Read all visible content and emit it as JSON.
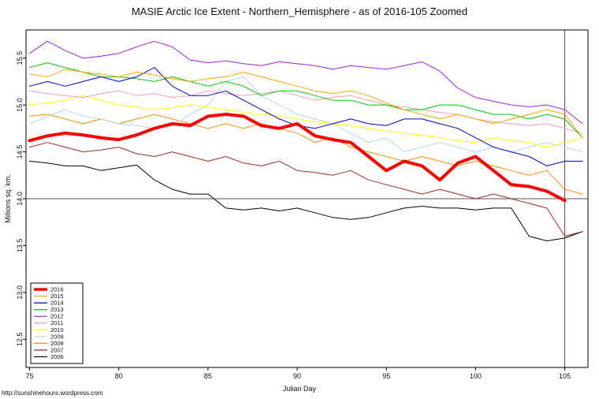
{
  "page": {
    "footer_url": "http://sunshinehours.wordpress.com"
  },
  "chart_data": {
    "type": "line",
    "title": "MASIE Arctic Ice Extent - Northern_Hemisphere - as of 2016-105 Zoomed",
    "xlabel": "Julian Day",
    "ylabel": "Millions sq. km.",
    "x_start": 75,
    "xlim": [
      74.8,
      106.3
    ],
    "ylim": [
      12.2,
      15.8
    ],
    "xticks": [
      75,
      80,
      85,
      90,
      95,
      100,
      105
    ],
    "yticks": [
      12.5,
      13.0,
      13.5,
      14.0,
      14.5,
      15.0,
      15.5
    ],
    "grid": false,
    "legend_position": "bottom-left",
    "reference_lines": {
      "horizontal_y": 14.0,
      "horizontal_color": "#555555",
      "vertical_x": 105,
      "vertical_color": "#993333"
    },
    "series": [
      {
        "name": "2016",
        "color": "#FF0000",
        "line_width": 4,
        "values": [
          14.62,
          14.67,
          14.7,
          14.68,
          14.65,
          14.63,
          14.68,
          14.75,
          14.8,
          14.78,
          14.88,
          14.9,
          14.88,
          14.78,
          14.75,
          14.8,
          14.67,
          14.63,
          14.6,
          14.45,
          14.3,
          14.4,
          14.35,
          14.2,
          14.38,
          14.45,
          14.3,
          14.15,
          14.13,
          14.08,
          13.98
        ]
      },
      {
        "name": "2015",
        "color": "#FFA500",
        "line_width": 1,
        "values": [
          15.33,
          15.3,
          15.38,
          15.35,
          15.33,
          15.3,
          15.35,
          15.32,
          15.28,
          15.25,
          15.28,
          15.3,
          15.35,
          15.3,
          15.25,
          15.2,
          15.15,
          15.12,
          15.15,
          15.1,
          15.02,
          14.95,
          14.9,
          14.85,
          14.9,
          14.85,
          14.8,
          14.85,
          14.9,
          14.95,
          14.9,
          14.65
        ]
      },
      {
        "name": "2014",
        "color": "#0000CD",
        "line_width": 1,
        "values": [
          15.2,
          15.25,
          15.2,
          15.25,
          15.3,
          15.25,
          15.3,
          15.4,
          15.2,
          15.1,
          15.1,
          15.15,
          15.05,
          14.95,
          14.85,
          14.78,
          14.75,
          14.8,
          14.85,
          14.8,
          14.78,
          14.85,
          14.85,
          14.8,
          14.75,
          14.65,
          14.55,
          14.5,
          14.45,
          14.35,
          14.4,
          14.4
        ]
      },
      {
        "name": "2013",
        "color": "#00CD00",
        "line_width": 1,
        "values": [
          15.4,
          15.45,
          15.4,
          15.35,
          15.3,
          15.3,
          15.28,
          15.25,
          15.3,
          15.25,
          15.2,
          15.25,
          15.2,
          15.1,
          15.15,
          15.15,
          15.1,
          15.05,
          15.05,
          15.0,
          15.0,
          14.95,
          14.95,
          15.0,
          15.0,
          14.95,
          14.9,
          14.9,
          14.85,
          14.9,
          14.85,
          14.65
        ]
      },
      {
        "name": "2012",
        "color": "#A020F0",
        "line_width": 1,
        "values": [
          15.55,
          15.68,
          15.58,
          15.5,
          15.52,
          15.55,
          15.62,
          15.68,
          15.62,
          15.48,
          15.45,
          15.47,
          15.44,
          15.42,
          15.46,
          15.44,
          15.42,
          15.38,
          15.42,
          15.4,
          15.38,
          15.42,
          15.46,
          15.36,
          15.18,
          15.08,
          15.04,
          15.0,
          14.98,
          15.0,
          14.95,
          14.8
        ]
      },
      {
        "name": "2011",
        "color": "#EEA2AD",
        "line_width": 1,
        "values": [
          15.15,
          15.12,
          15.1,
          15.08,
          15.12,
          15.15,
          15.1,
          15.12,
          15.08,
          15.1,
          15.15,
          15.12,
          15.1,
          15.12,
          15.15,
          15.1,
          15.05,
          15.08,
          15.1,
          15.05,
          15.0,
          14.98,
          14.95,
          14.92,
          14.9,
          14.85,
          14.82,
          14.8,
          14.78,
          14.8,
          14.75,
          14.7
        ]
      },
      {
        "name": "2010",
        "color": "#FFFF00",
        "line_width": 1,
        "values": [
          15.0,
          15.02,
          15.05,
          15.1,
          15.05,
          15.0,
          14.98,
          14.95,
          14.97,
          15.0,
          14.98,
          14.95,
          14.92,
          14.9,
          14.88,
          14.85,
          14.82,
          14.8,
          14.78,
          14.75,
          14.72,
          14.7,
          14.68,
          14.65,
          14.62,
          14.6,
          14.65,
          14.62,
          14.6,
          14.55,
          14.6,
          14.65
        ]
      },
      {
        "name": "2009",
        "color": "#ADD8E6",
        "line_width": 1,
        "values": [
          14.8,
          14.88,
          14.95,
          14.88,
          14.85,
          14.8,
          14.78,
          14.75,
          14.78,
          14.9,
          15.0,
          15.25,
          15.3,
          15.1,
          15.0,
          14.9,
          14.85,
          14.8,
          14.7,
          14.6,
          14.65,
          14.5,
          14.55,
          14.6,
          14.55,
          14.5,
          14.55,
          14.5,
          14.55,
          14.6,
          14.55,
          14.5
        ]
      },
      {
        "name": "2008",
        "color": "#FF8C00",
        "line_width": 1,
        "values": [
          14.88,
          14.9,
          14.85,
          14.8,
          14.85,
          14.8,
          14.85,
          14.9,
          14.85,
          14.8,
          14.75,
          14.8,
          14.75,
          14.8,
          14.75,
          14.7,
          14.6,
          14.65,
          14.55,
          14.5,
          14.45,
          14.4,
          14.45,
          14.4,
          14.35,
          14.4,
          14.35,
          14.3,
          14.25,
          14.3,
          14.1,
          14.05
        ]
      },
      {
        "name": "2007",
        "color": "#A52A2A",
        "line_width": 1,
        "values": [
          14.55,
          14.6,
          14.55,
          14.5,
          14.52,
          14.55,
          14.48,
          14.45,
          14.5,
          14.45,
          14.4,
          14.45,
          14.38,
          14.35,
          14.4,
          14.3,
          14.28,
          14.25,
          14.3,
          14.2,
          14.15,
          14.1,
          14.05,
          14.1,
          14.05,
          14.0,
          14.05,
          14.0,
          13.95,
          13.9,
          13.6,
          13.65
        ]
      },
      {
        "name": "2006",
        "color": "#000000",
        "line_width": 1,
        "values": [
          14.4,
          14.38,
          14.35,
          14.35,
          14.3,
          14.33,
          14.36,
          14.2,
          14.1,
          14.05,
          14.05,
          13.9,
          13.88,
          13.9,
          13.87,
          13.9,
          13.85,
          13.8,
          13.78,
          13.8,
          13.85,
          13.9,
          13.92,
          13.9,
          13.9,
          13.88,
          13.9,
          13.9,
          13.6,
          13.55,
          13.58,
          13.65
        ]
      }
    ]
  }
}
